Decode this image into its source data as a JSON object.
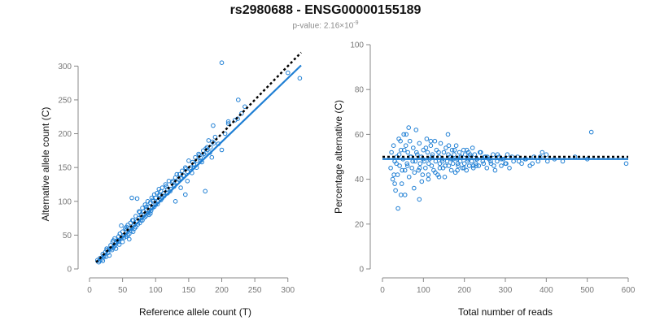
{
  "figure": {
    "title": "rs2980688 - ENSG00000155189",
    "subtitle_prefix": "p-value: 2.16×10",
    "subtitle_exponent": "-9",
    "point_color": "#1f7fd4",
    "fit_color": "#1f7fd4",
    "reference_color": "#000000"
  },
  "chart_data": [
    {
      "type": "scatter",
      "xlabel": "Reference allele count (T)",
      "ylabel": "Alternative allele count (C)",
      "xlim": [
        0,
        320
      ],
      "ylim": [
        0,
        310
      ],
      "xticks": [
        0,
        50,
        100,
        150,
        200,
        250,
        300
      ],
      "yticks": [
        0,
        50,
        100,
        150,
        200,
        250,
        300
      ],
      "grid": false,
      "fit_line": {
        "x": [
          10,
          320
        ],
        "y": [
          9,
          301
        ]
      },
      "reference_line": {
        "x": [
          10,
          320
        ],
        "y": [
          10,
          320
        ]
      },
      "points": {
        "x": [
          12,
          14,
          16,
          18,
          20,
          20,
          22,
          24,
          25,
          26,
          28,
          30,
          30,
          32,
          34,
          35,
          36,
          38,
          40,
          40,
          42,
          44,
          45,
          46,
          48,
          50,
          50,
          52,
          54,
          55,
          56,
          58,
          60,
          60,
          62,
          64,
          65,
          66,
          68,
          70,
          70,
          72,
          74,
          75,
          76,
          78,
          80,
          80,
          82,
          84,
          85,
          86,
          88,
          90,
          90,
          92,
          94,
          95,
          96,
          98,
          100,
          100,
          102,
          104,
          105,
          106,
          108,
          110,
          110,
          112,
          115,
          118,
          120,
          122,
          125,
          128,
          130,
          132,
          135,
          138,
          140,
          142,
          145,
          148,
          150,
          152,
          155,
          158,
          160,
          162,
          165,
          168,
          170,
          172,
          175,
          178,
          180,
          182,
          185,
          190,
          195,
          200,
          205,
          210,
          220,
          225,
          230,
          235,
          300,
          318,
          15,
          22,
          28,
          33,
          38,
          44,
          52,
          58,
          63,
          68,
          73,
          78,
          83,
          88,
          93,
          98,
          103,
          108,
          113,
          118,
          123,
          128,
          133,
          138,
          143,
          148,
          153,
          158,
          163,
          168,
          173,
          178,
          183,
          188,
          26,
          36,
          46,
          56,
          66,
          76,
          86,
          96,
          106,
          116,
          126,
          136,
          146,
          156,
          166,
          176,
          186,
          64,
          72,
          48,
          92,
          130,
          145,
          175,
          187,
          210,
          200,
          224
        ],
        "y": [
          13,
          10,
          16,
          14,
          22,
          12,
          20,
          25,
          18,
          28,
          24,
          30,
          20,
          35,
          28,
          40,
          32,
          45,
          38,
          30,
          42,
          48,
          36,
          52,
          45,
          55,
          40,
          50,
          60,
          48,
          58,
          65,
          52,
          44,
          68,
          60,
          72,
          55,
          66,
          78,
          62,
          70,
          75,
          85,
          68,
          80,
          90,
          72,
          85,
          95,
          78,
          88,
          100,
          92,
          80,
          98,
          105,
          90,
          100,
          110,
          105,
          95,
          112,
          100,
          118,
          108,
          115,
          120,
          105,
          112,
          125,
          118,
          130,
          115,
          128,
          122,
          135,
          140,
          132,
          120,
          145,
          138,
          150,
          130,
          160,
          148,
          142,
          155,
          165,
          150,
          170,
          160,
          158,
          175,
          168,
          180,
          190,
          172,
          165,
          195,
          185,
          305,
          200,
          215,
          220,
          250,
          230,
          240,
          290,
          282,
          12,
          18,
          24,
          30,
          34,
          40,
          46,
          50,
          56,
          60,
          66,
          72,
          76,
          82,
          86,
          92,
          96,
          102,
          108,
          112,
          118,
          124,
          128,
          134,
          138,
          144,
          150,
          154,
          160,
          164,
          170,
          176,
          180,
          186,
          30,
          42,
          52,
          62,
          72,
          84,
          92,
          102,
          110,
          122,
          130,
          140,
          148,
          158,
          168,
          178,
          188,
          105,
          104,
          64,
          82,
          100,
          110,
          115,
          212,
          218,
          176,
          222
        ]
      }
    },
    {
      "type": "scatter",
      "xlabel": "Total number of reads",
      "ylabel": "Percentage alternative (C)",
      "xlim": [
        0,
        600
      ],
      "ylim": [
        0,
        100
      ],
      "xticks": [
        0,
        100,
        200,
        300,
        400,
        500,
        600
      ],
      "yticks": [
        0,
        20,
        40,
        60,
        80,
        100
      ],
      "grid": false,
      "fit_line": {
        "x": [
          0,
          600
        ],
        "y": [
          49,
          49
        ]
      },
      "reference_line": {
        "x": [
          0,
          600
        ],
        "y": [
          50,
          50
        ]
      },
      "points": {
        "x": [
          20,
          22,
          25,
          27,
          30,
          32,
          35,
          37,
          40,
          42,
          45,
          47,
          50,
          52,
          55,
          57,
          60,
          62,
          65,
          67,
          70,
          72,
          75,
          77,
          80,
          82,
          85,
          88,
          90,
          92,
          95,
          98,
          100,
          102,
          105,
          108,
          110,
          112,
          115,
          118,
          120,
          122,
          125,
          128,
          130,
          132,
          135,
          138,
          140,
          142,
          145,
          148,
          150,
          152,
          155,
          158,
          160,
          162,
          165,
          168,
          170,
          172,
          175,
          178,
          180,
          182,
          185,
          188,
          190,
          192,
          195,
          198,
          200,
          202,
          205,
          208,
          210,
          212,
          215,
          218,
          220,
          222,
          225,
          228,
          230,
          235,
          240,
          245,
          250,
          255,
          260,
          265,
          270,
          275,
          280,
          285,
          290,
          295,
          300,
          305,
          310,
          320,
          330,
          340,
          350,
          360,
          370,
          380,
          390,
          400,
          420,
          440,
          470,
          500,
          510,
          595,
          28,
          34,
          41,
          48,
          53,
          61,
          68,
          74,
          83,
          91,
          99,
          106,
          113,
          121,
          129,
          137,
          146,
          153,
          161,
          168,
          176,
          184,
          191,
          199,
          207,
          214,
          222,
          231,
          238,
          247,
          256,
          264,
          272,
          281,
          290,
          302,
          316,
          333,
          348,
          366,
          385,
          403,
          45,
          58,
          78,
          96,
          118,
          138,
          162,
          183,
          206,
          229,
          252,
          38,
          55,
          64,
          30,
          44,
          90,
          112,
          140,
          172
        ],
        "y": [
          45,
          52,
          40,
          55,
          48,
          35,
          50,
          42,
          58,
          46,
          53,
          38,
          49,
          60,
          44,
          55,
          47,
          52,
          41,
          57,
          50,
          45,
          54,
          36,
          48,
          62,
          51,
          44,
          56,
          47,
          50,
          42,
          53,
          48,
          45,
          58,
          52,
          40,
          49,
          55,
          46,
          51,
          44,
          57,
          48,
          53,
          42,
          50,
          47,
          56,
          49,
          45,
          52,
          41,
          54,
          48,
          60,
          46,
          50,
          44,
          53,
          47,
          51,
          43,
          55,
          49,
          46,
          52,
          48,
          50,
          45,
          53,
          47,
          51,
          44,
          49,
          52,
          46,
          50,
          48,
          54,
          45,
          51,
          47,
          49,
          46,
          52,
          48,
          50,
          45,
          49,
          47,
          51,
          44,
          48,
          50,
          46,
          49,
          47,
          51,
          45,
          48,
          50,
          47,
          49,
          46,
          50,
          48,
          52,
          51,
          49,
          48,
          50,
          49,
          61,
          47,
          42,
          47,
          51,
          44,
          53,
          46,
          50,
          48,
          52,
          45,
          49,
          54,
          47,
          50,
          43,
          52,
          48,
          46,
          51,
          49,
          53,
          47,
          50,
          45,
          48,
          51,
          46,
          49,
          52,
          47,
          50,
          48,
          46,
          51,
          49,
          47,
          50,
          48,
          49,
          47,
          50,
          48,
          33,
          60,
          43,
          39,
          57,
          41,
          55,
          44,
          53,
          46,
          50,
          27,
          33,
          63,
          38,
          57,
          31,
          42,
          45,
          49
        ]
      }
    }
  ]
}
